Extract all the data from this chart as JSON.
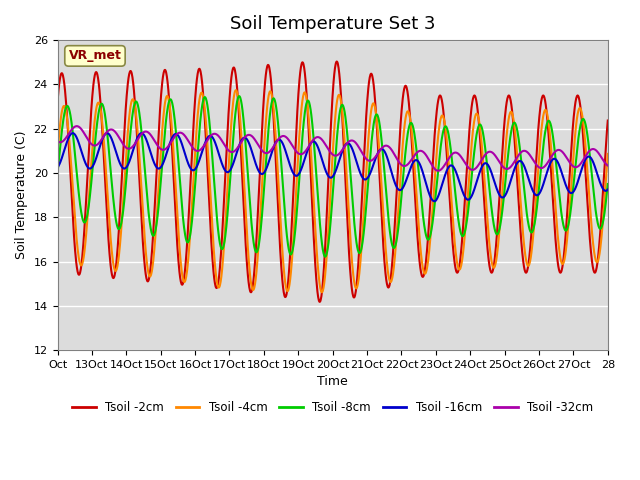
{
  "title": "Soil Temperature Set 3",
  "xlabel": "Time",
  "ylabel": "Soil Temperature (C)",
  "ylim": [
    12,
    26
  ],
  "xlim": [
    0,
    16
  ],
  "annotation": "VR_met",
  "plot_bg_color": "#dcdcdc",
  "xtick_labels": [
    "Oct",
    "13Oct",
    "14Oct",
    "15Oct",
    "16Oct",
    "17Oct",
    "18Oct",
    "19Oct",
    "20Oct",
    "21Oct",
    "22Oct",
    "23Oct",
    "24Oct",
    "25Oct",
    "26Oct",
    "27Oct",
    "28"
  ],
  "ytick_values": [
    12,
    14,
    16,
    18,
    20,
    22,
    24,
    26
  ],
  "series": {
    "Tsoil -2cm": {
      "color": "#cc0000",
      "lw": 1.5
    },
    "Tsoil -4cm": {
      "color": "#ff8800",
      "lw": 1.5
    },
    "Tsoil -8cm": {
      "color": "#00cc00",
      "lw": 1.5
    },
    "Tsoil -16cm": {
      "color": "#0000cc",
      "lw": 1.5
    },
    "Tsoil -32cm": {
      "color": "#aa00aa",
      "lw": 1.5
    }
  },
  "title_fontsize": 13,
  "axis_label_fontsize": 9,
  "tick_fontsize": 8
}
